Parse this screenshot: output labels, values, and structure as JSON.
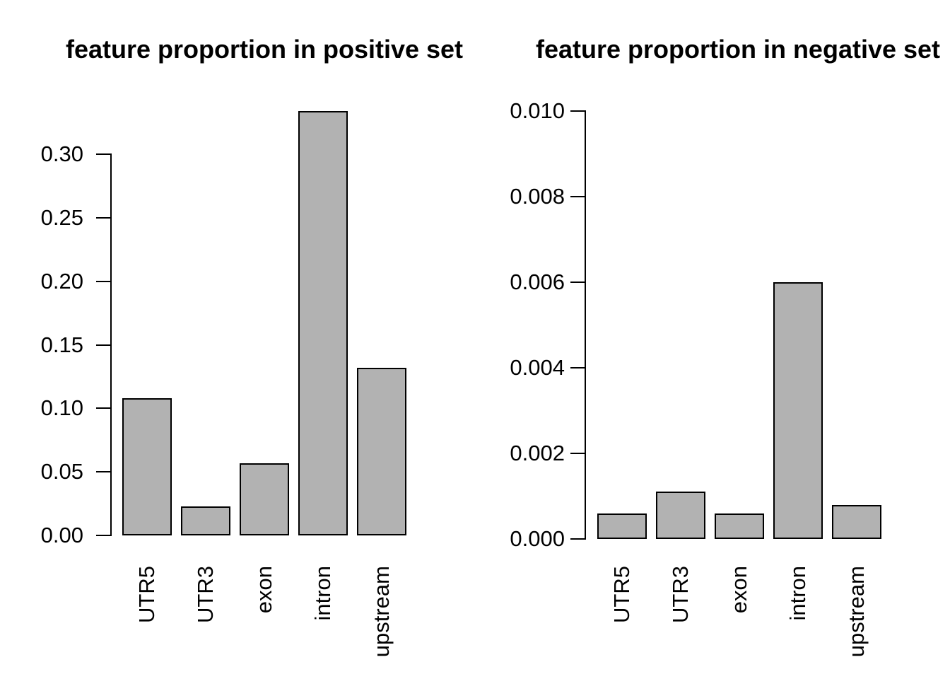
{
  "figure": {
    "background": "#ffffff",
    "text_color": "#000000",
    "bar_fill": "#b2b2b2",
    "bar_border": "#000000"
  },
  "chart_data": [
    {
      "type": "bar",
      "panel": "left",
      "title": "feature proportion in positive set",
      "categories": [
        "UTR5",
        "UTR3",
        "exon",
        "intron",
        "upstream"
      ],
      "values": [
        0.108,
        0.023,
        0.057,
        0.334,
        0.132
      ],
      "ylim": [
        0,
        0.3
      ],
      "ytick_values": [
        0,
        0.05,
        0.1,
        0.15,
        0.2,
        0.25,
        0.3
      ],
      "ytick_labels": [
        "0.00",
        "0.05",
        "0.10",
        "0.15",
        "0.20",
        "0.25",
        "0.30"
      ],
      "xlabel": "",
      "ylabel": "",
      "grid": false,
      "legend_position": "none",
      "bar_fill": "#b2b2b2",
      "bar_border": "#000000"
    },
    {
      "type": "bar",
      "panel": "right",
      "title": "feature proportion in negative set",
      "categories": [
        "UTR5",
        "UTR3",
        "exon",
        "intron",
        "upstream"
      ],
      "values": [
        0.0006,
        0.0011,
        0.0006,
        0.006,
        0.0008
      ],
      "ylim": [
        0,
        0.01
      ],
      "ytick_values": [
        0,
        0.002,
        0.004,
        0.006,
        0.008,
        0.01
      ],
      "ytick_labels": [
        "0.000",
        "0.002",
        "0.004",
        "0.006",
        "0.008",
        "0.010"
      ],
      "xlabel": "",
      "ylabel": "",
      "grid": false,
      "legend_position": "none",
      "bar_fill": "#b2b2b2",
      "bar_border": "#000000"
    }
  ]
}
